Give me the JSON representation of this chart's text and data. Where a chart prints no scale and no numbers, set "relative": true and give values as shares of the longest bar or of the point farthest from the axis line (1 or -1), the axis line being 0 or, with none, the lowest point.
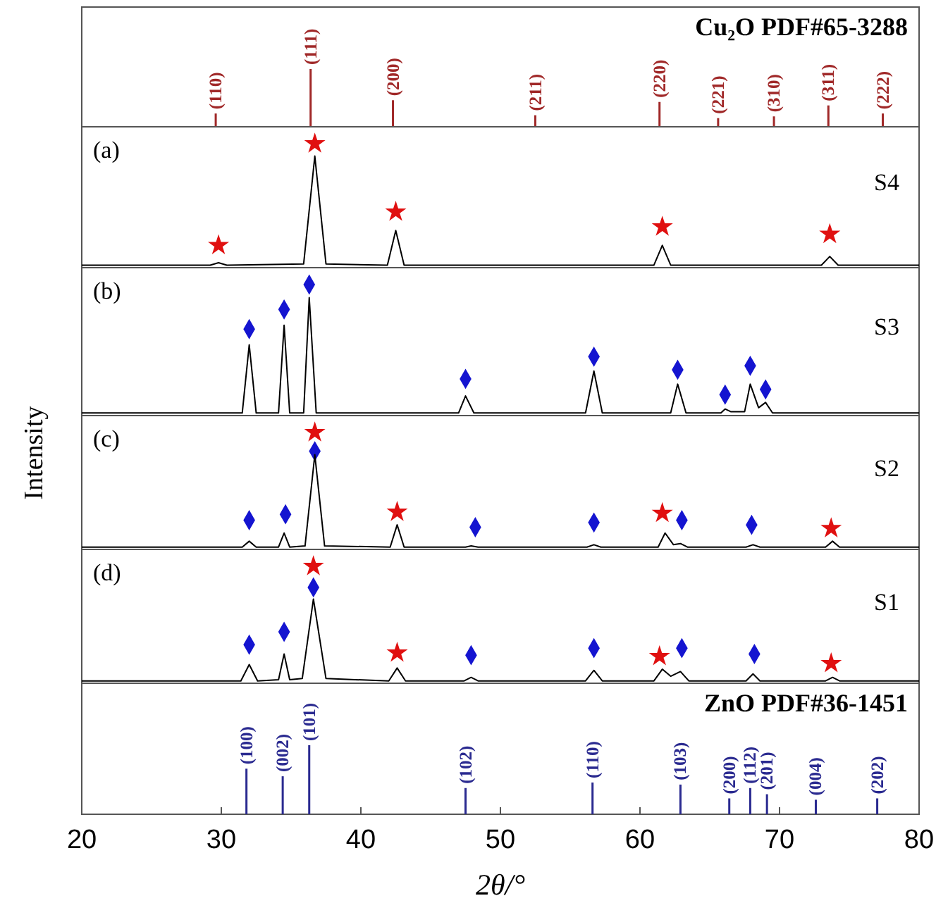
{
  "chart_data": [
    {
      "type": "bar",
      "relative": true,
      "title": "Cu₂O PDF#65-3288",
      "xlim": [
        20,
        80
      ],
      "tick_labels": false,
      "color": "#a02828",
      "x": [
        29.6,
        36.4,
        42.3,
        52.5,
        61.4,
        65.6,
        69.6,
        73.5,
        77.4
      ],
      "values": [
        0.23,
        1,
        0.46,
        0.2,
        0.43,
        0.15,
        0.18,
        0.37,
        0.23
      ],
      "annotations": [
        {
          "text": "(110)",
          "x": 29.6,
          "y": 0.23
        },
        {
          "text": "(111)",
          "x": 36.4,
          "y": 1
        },
        {
          "text": "(200)",
          "x": 42.3,
          "y": 0.46
        },
        {
          "text": "(211)",
          "x": 52.5,
          "y": 0.2
        },
        {
          "text": "(220)",
          "x": 61.4,
          "y": 0.43
        },
        {
          "text": "(221)",
          "x": 65.6,
          "y": 0.15
        },
        {
          "text": "(310)",
          "x": 69.6,
          "y": 0.18
        },
        {
          "text": "(311)",
          "x": 73.5,
          "y": 0.37
        },
        {
          "text": "(222)",
          "x": 77.4,
          "y": 0.23
        }
      ]
    },
    {
      "type": "line",
      "relative": true,
      "title": "(a)",
      "xlim": [
        20,
        80
      ],
      "tick_labels": false,
      "series": [
        {
          "name": "S4",
          "color": "#000000",
          "x": [
            20,
            25,
            29.2,
            29.8,
            30.4,
            35.9,
            36.7,
            37.5,
            41.9,
            42.5,
            43.1,
            50,
            61.0,
            61.6,
            62.2,
            73.0,
            73.6,
            74.2,
            80
          ],
          "values": [
            0.02,
            0.02,
            0.02,
            0.04,
            0.02,
            0.03,
            0.9,
            0.03,
            0.02,
            0.3,
            0.02,
            0.02,
            0.02,
            0.18,
            0.02,
            0.02,
            0.09,
            0.02,
            0.02
          ]
        },
        {
          "type": "scatter",
          "marker": "star",
          "color": "#e01010",
          "x": [
            29.8,
            36.7,
            42.5,
            61.6,
            73.6
          ],
          "values": [
            0.18,
            1,
            0.45,
            0.33,
            0.27
          ]
        }
      ]
    },
    {
      "type": "line",
      "relative": true,
      "title": "(b)",
      "xlim": [
        20,
        80
      ],
      "tick_labels": false,
      "series": [
        {
          "name": "S3",
          "color": "#000000",
          "x": [
            20,
            25,
            31.5,
            32.0,
            32.5,
            34.1,
            34.5,
            34.9,
            35.9,
            36.3,
            36.8,
            47.0,
            47.5,
            48.1,
            56.1,
            56.7,
            57.3,
            62.2,
            62.7,
            63.3,
            65.8,
            66.1,
            66.5,
            67.5,
            67.9,
            68.5,
            69.0,
            69.5,
            80
          ],
          "values": [
            0.02,
            0.02,
            0.02,
            0.54,
            0.02,
            0.02,
            0.69,
            0.02,
            0.02,
            0.9,
            0.02,
            0.02,
            0.15,
            0.02,
            0.02,
            0.34,
            0.02,
            0.02,
            0.24,
            0.02,
            0.02,
            0.05,
            0.03,
            0.03,
            0.24,
            0.06,
            0.1,
            0.02,
            0.02
          ]
        },
        {
          "type": "scatter",
          "marker": "diamond",
          "color": "#1414d0",
          "x": [
            32.0,
            34.5,
            36.3,
            47.5,
            56.7,
            62.7,
            66.1,
            67.9,
            69.0
          ],
          "values": [
            0.66,
            0.81,
            1,
            0.28,
            0.45,
            0.35,
            0.16,
            0.38,
            0.2
          ]
        }
      ]
    },
    {
      "type": "line",
      "relative": true,
      "title": "(c)",
      "ylabel": "Intensity",
      "xlim": [
        20,
        80
      ],
      "tick_labels": false,
      "series": [
        {
          "name": "S2",
          "color": "#000000",
          "x": [
            20,
            25,
            31.5,
            32.0,
            32.5,
            34.1,
            34.5,
            34.9,
            36.0,
            36.7,
            37.4,
            42.1,
            42.6,
            43.1,
            47.5,
            47.9,
            48.4,
            56.2,
            56.7,
            57.2,
            61.3,
            61.8,
            62.4,
            62.9,
            63.4,
            67.6,
            68.1,
            68.6,
            73.3,
            73.8,
            74.3,
            80
          ],
          "values": [
            0.02,
            0.02,
            0.02,
            0.07,
            0.02,
            0.02,
            0.14,
            0.02,
            0.03,
            0.81,
            0.03,
            0.02,
            0.21,
            0.02,
            0.02,
            0.03,
            0.02,
            0.02,
            0.04,
            0.02,
            0.02,
            0.14,
            0.04,
            0.05,
            0.02,
            0.02,
            0.04,
            0.02,
            0.02,
            0.07,
            0.02,
            0.02
          ]
        },
        {
          "type": "scatter",
          "marker": "star",
          "color": "#e01010",
          "x": [
            36.7,
            42.6,
            61.6,
            73.7
          ],
          "values": [
            1,
            0.32,
            0.31,
            0.18
          ]
        },
        {
          "type": "scatter",
          "marker": "diamond",
          "color": "#1414d0",
          "x": [
            32.0,
            34.6,
            36.7,
            48.2,
            56.7,
            63.0,
            68.0
          ],
          "values": [
            0.25,
            0.3,
            0.84,
            0.19,
            0.23,
            0.25,
            0.21
          ]
        }
      ]
    },
    {
      "type": "line",
      "relative": true,
      "title": "(d)",
      "xlim": [
        20,
        80
      ],
      "tick_labels": false,
      "series": [
        {
          "name": "S1",
          "color": "#000000",
          "x": [
            20,
            25,
            31.4,
            32.0,
            32.6,
            34.1,
            34.5,
            34.9,
            35.8,
            36.6,
            37.5,
            42.0,
            42.6,
            43.2,
            47.4,
            47.9,
            48.4,
            56.1,
            56.7,
            57.3,
            61.0,
            61.6,
            62.2,
            62.9,
            63.5,
            67.6,
            68.1,
            68.6,
            73.3,
            73.8,
            74.3,
            80
          ],
          "values": [
            0.02,
            0.02,
            0.02,
            0.16,
            0.02,
            0.03,
            0.25,
            0.03,
            0.04,
            0.72,
            0.04,
            0.02,
            0.13,
            0.02,
            0.02,
            0.05,
            0.02,
            0.02,
            0.11,
            0.02,
            0.02,
            0.12,
            0.06,
            0.1,
            0.02,
            0.02,
            0.08,
            0.02,
            0.02,
            0.05,
            0.02,
            0.02
          ]
        },
        {
          "type": "scatter",
          "marker": "star",
          "color": "#e01010",
          "x": [
            36.6,
            42.6,
            61.4,
            73.7
          ],
          "values": [
            1,
            0.26,
            0.23,
            0.17
          ]
        },
        {
          "type": "scatter",
          "marker": "diamond",
          "color": "#1414d0",
          "x": [
            32.0,
            34.5,
            36.6,
            47.9,
            56.7,
            63.0,
            68.2
          ],
          "values": [
            0.33,
            0.44,
            0.82,
            0.24,
            0.3,
            0.3,
            0.25
          ]
        }
      ]
    },
    {
      "type": "bar",
      "relative": true,
      "title": "ZnO PDF#36-1451",
      "xlabel": "2θ/°",
      "xlim": [
        20,
        80
      ],
      "xticks": [
        20,
        30,
        40,
        50,
        60,
        70,
        80
      ],
      "tick_labels": "x",
      "color": "#2a2a90",
      "x": [
        31.8,
        34.4,
        36.3,
        47.5,
        56.6,
        62.9,
        66.4,
        67.9,
        69.1,
        72.6,
        77.0
      ],
      "values": [
        0.66,
        0.55,
        1,
        0.38,
        0.46,
        0.43,
        0.23,
        0.38,
        0.29,
        0.21,
        0.23
      ],
      "annotations": [
        {
          "text": "(100)",
          "x": 31.8,
          "y": 0.66
        },
        {
          "text": "(002)",
          "x": 34.4,
          "y": 0.55
        },
        {
          "text": "(101)",
          "x": 36.3,
          "y": 1
        },
        {
          "text": "(102)",
          "x": 47.5,
          "y": 0.38
        },
        {
          "text": "(110)",
          "x": 56.6,
          "y": 0.46
        },
        {
          "text": "(103)",
          "x": 62.9,
          "y": 0.43
        },
        {
          "text": "(200)",
          "x": 66.4,
          "y": 0.23
        },
        {
          "text": "(112)",
          "x": 67.9,
          "y": 0.38
        },
        {
          "text": "(201)",
          "x": 69.1,
          "y": 0.29
        },
        {
          "text": "(004)",
          "x": 72.6,
          "y": 0.21
        },
        {
          "text": "(202)",
          "x": 77.0,
          "y": 0.23
        }
      ]
    }
  ]
}
